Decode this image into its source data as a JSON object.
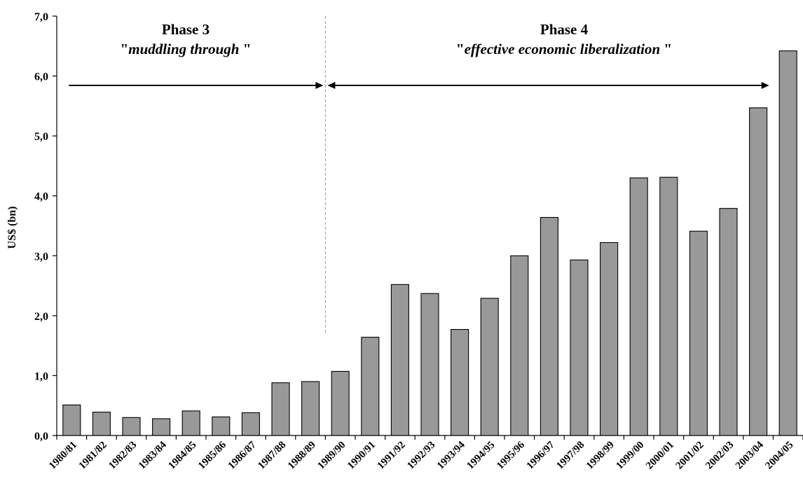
{
  "chart_data": {
    "type": "bar",
    "ylabel": "US$ (bn)",
    "xlabel": "",
    "title": "",
    "ylim": [
      0,
      7
    ],
    "ytick_step": 1,
    "ytick_labels": [
      "0,0",
      "1,0",
      "2,0",
      "3,0",
      "4,0",
      "5,0",
      "6,0",
      "7,0"
    ],
    "grid": false,
    "bar_color": "#999999",
    "categories": [
      "1980/81",
      "1981/82",
      "1982/83",
      "1983/84",
      "1984/85",
      "1985/86",
      "1986/87",
      "1987/88",
      "1988/89",
      "1989/90",
      "1990/91",
      "1991/92",
      "1992/93",
      "1993/94",
      "1994/95",
      "1995/96",
      "1996/97",
      "1997/98",
      "1998/99",
      "1999/00",
      "2000/01",
      "2001/02",
      "2002/03",
      "2003/04",
      "2004/05"
    ],
    "values": [
      0.51,
      0.39,
      0.3,
      0.28,
      0.41,
      0.31,
      0.38,
      0.88,
      0.9,
      1.07,
      1.64,
      2.52,
      2.37,
      1.77,
      2.29,
      3.0,
      3.64,
      2.93,
      3.22,
      4.3,
      4.31,
      3.41,
      3.79,
      5.47,
      6.42
    ],
    "annotations": {
      "divider_between": [
        "1988/89",
        "1989/90"
      ],
      "phase3": {
        "title": "Phase 3",
        "subtitle": "muddling through",
        "from": "1980/81",
        "to": "1988/89"
      },
      "phase4": {
        "title": "Phase 4",
        "subtitle": "effective economic liberalization",
        "from": "1989/90",
        "to": "2004/05"
      }
    }
  }
}
